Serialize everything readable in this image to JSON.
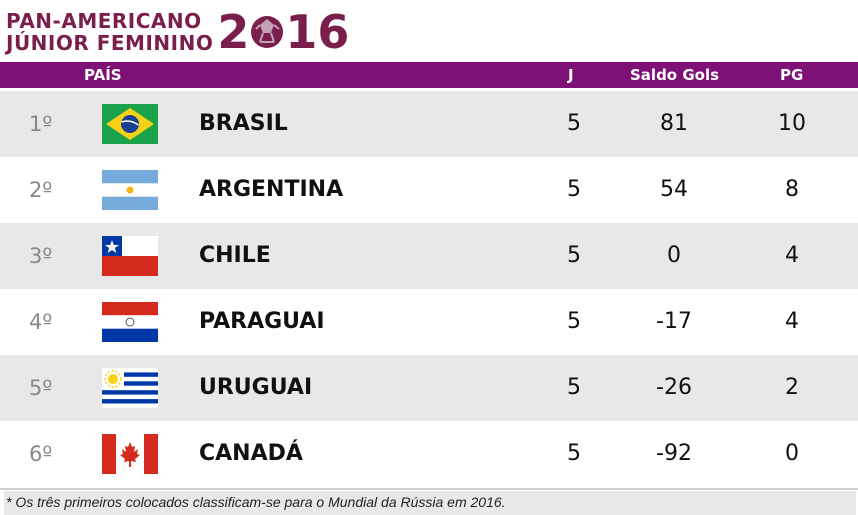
{
  "title": {
    "line1": "PAN-AMERICANO",
    "line2": "JÚNIOR FEMININO",
    "year_a": "2",
    "year_b": "16"
  },
  "columns": {
    "country": "PAÍS",
    "games": "J",
    "goal_diff": "Saldo Gols",
    "points": "PG"
  },
  "rows": [
    {
      "pos": "1º",
      "name": "BRASIL",
      "j": "5",
      "saldo": "81",
      "pg": "10",
      "flag": "brazil-flag-icon"
    },
    {
      "pos": "2º",
      "name": "ARGENTINA",
      "j": "5",
      "saldo": "54",
      "pg": "8",
      "flag": "argentina-flag-icon"
    },
    {
      "pos": "3º",
      "name": "CHILE",
      "j": "5",
      "saldo": "0",
      "pg": "4",
      "flag": "chile-flag-icon"
    },
    {
      "pos": "4º",
      "name": "PARAGUAI",
      "j": "5",
      "saldo": "-17",
      "pg": "4",
      "flag": "paraguay-flag-icon"
    },
    {
      "pos": "5º",
      "name": "URUGUAI",
      "j": "5",
      "saldo": "-26",
      "pg": "2",
      "flag": "uruguay-flag-icon"
    },
    {
      "pos": "6º",
      "name": "CANADÁ",
      "j": "5",
      "saldo": "-92",
      "pg": "0",
      "flag": "canada-flag-icon"
    }
  ],
  "footnote": "* Os três primeiros colocados classificam-se para o Mundial da Rússia em 2016.",
  "colors": {
    "header_bg": "#7d1175",
    "brand": "#7a1f4b",
    "row_alt": "#e8e8e8"
  }
}
